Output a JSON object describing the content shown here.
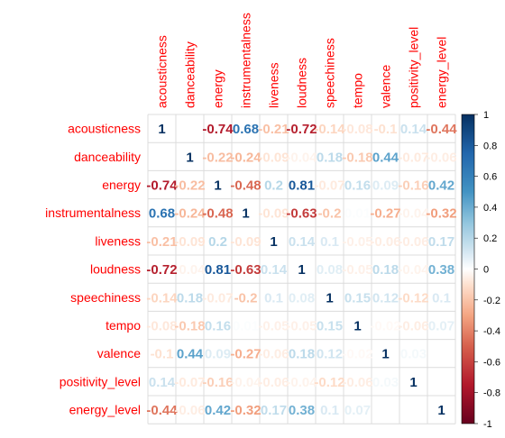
{
  "chart_data": {
    "type": "heatmap",
    "variables": [
      "acousticness",
      "danceability",
      "energy",
      "instrumentalness",
      "liveness",
      "loudness",
      "speechiness",
      "tempo",
      "valence",
      "positivity_level",
      "energy_level"
    ],
    "matrix": [
      [
        1,
        0,
        -0.74,
        0.68,
        -0.21,
        -0.72,
        -0.14,
        -0.08,
        -0.1,
        0.14,
        -0.44
      ],
      [
        0,
        1,
        -0.22,
        -0.24,
        -0.09,
        -0.04,
        0.18,
        -0.18,
        0.44,
        -0.07,
        -0.06
      ],
      [
        -0.74,
        -0.22,
        1,
        -0.48,
        0.2,
        0.81,
        -0.07,
        0.16,
        0.09,
        -0.16,
        0.42
      ],
      [
        0.68,
        -0.24,
        -0.48,
        1,
        -0.09,
        -0.63,
        -0.2,
        0.01,
        -0.27,
        -0.04,
        -0.32
      ],
      [
        -0.21,
        -0.09,
        0.2,
        -0.09,
        1,
        0.14,
        0.1,
        -0.05,
        -0.06,
        -0.06,
        0.17
      ],
      [
        -0.72,
        -0.04,
        0.81,
        -0.63,
        0.14,
        1,
        0.08,
        -0.05,
        0.18,
        -0.04,
        0.38
      ],
      [
        -0.14,
        0.18,
        -0.07,
        -0.2,
        0.1,
        0.08,
        1,
        0.15,
        0.12,
        -0.12,
        0.1
      ],
      [
        -0.08,
        -0.18,
        0.16,
        0.01,
        -0.05,
        -0.05,
        0.15,
        1,
        -0.02,
        -0.06,
        0.07
      ],
      [
        -0.1,
        0.44,
        0.09,
        -0.27,
        -0.06,
        0.18,
        0.12,
        -0.02,
        1,
        0.03,
        0
      ],
      [
        0.14,
        -0.07,
        -0.16,
        -0.04,
        -0.06,
        -0.04,
        -0.12,
        -0.06,
        0.03,
        1,
        0
      ],
      [
        -0.44,
        -0.06,
        0.42,
        -0.32,
        0.17,
        0.38,
        0.1,
        0.07,
        0,
        0,
        1
      ]
    ],
    "hidden_cells": [
      [
        0,
        1
      ],
      [
        1,
        0
      ],
      [
        8,
        10
      ],
      [
        9,
        10
      ],
      [
        10,
        8
      ],
      [
        10,
        9
      ]
    ],
    "color_scale": {
      "min": -1,
      "max": 1,
      "low": "#67001F",
      "mid": "#FFFFFF",
      "high": "#053061"
    },
    "legend_ticks": [
      "1",
      "0.8",
      "0.6",
      "0.4",
      "0.2",
      "0",
      "-0.2",
      "-0.4",
      "-0.6",
      "-0.8",
      "-1"
    ],
    "label_color": "#FF0000",
    "grid": true,
    "legend_position": "right"
  }
}
